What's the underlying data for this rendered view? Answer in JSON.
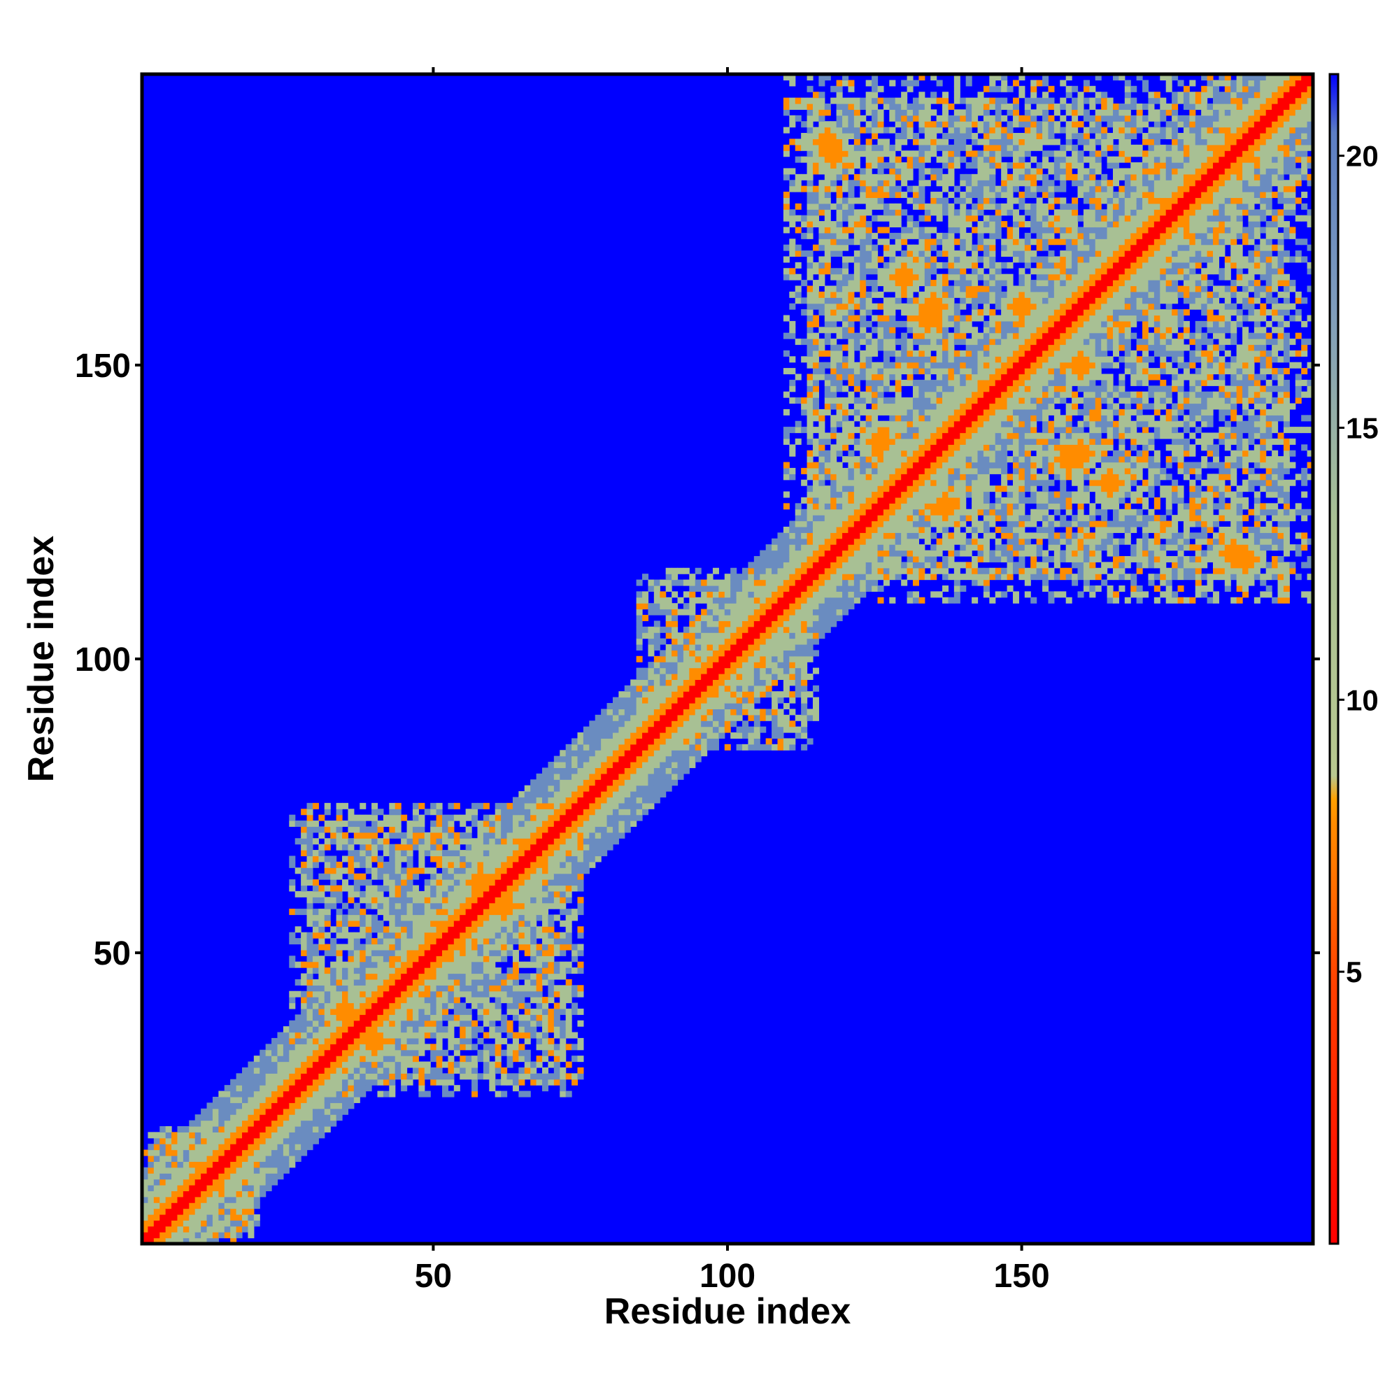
{
  "chart_data": {
    "type": "heatmap",
    "title": "",
    "xlabel": "Residue index",
    "ylabel": "Residue index",
    "n_residues": 199,
    "xlim": [
      1,
      199
    ],
    "ylim": [
      1,
      199
    ],
    "x_ticks": [
      "50",
      "100",
      "150"
    ],
    "y_ticks": [
      "50",
      "100",
      "150"
    ],
    "x_tick_values": [
      50,
      100,
      150
    ],
    "y_tick_values": [
      50,
      100,
      150
    ],
    "colorbar": {
      "range": [
        0,
        21.5
      ],
      "ticks": [
        "5",
        "10",
        "15",
        "20"
      ],
      "tick_values": [
        5,
        10,
        15,
        20
      ],
      "placement": "right"
    },
    "colors": {
      "background": "#0000ff",
      "near": "#ff0000",
      "close": "#ff8c00",
      "mid": "#a8c094",
      "far": "#6a8cc0"
    },
    "domains": [
      {
        "from": 1,
        "to": 20
      },
      {
        "from": 26,
        "to": 75
      },
      {
        "from": 85,
        "to": 115
      },
      {
        "from": 110,
        "to": 199
      }
    ],
    "contact_features": [
      {
        "i": 117,
        "j": 188
      },
      {
        "i": 118,
        "j": 186
      },
      {
        "i": 134,
        "j": 158
      },
      {
        "i": 126,
        "j": 137
      },
      {
        "i": 160,
        "j": 135
      },
      {
        "i": 150,
        "j": 160
      },
      {
        "i": 188,
        "j": 117
      },
      {
        "i": 165,
        "j": 130
      },
      {
        "i": 40,
        "j": 35
      },
      {
        "i": 62,
        "j": 58
      }
    ]
  }
}
